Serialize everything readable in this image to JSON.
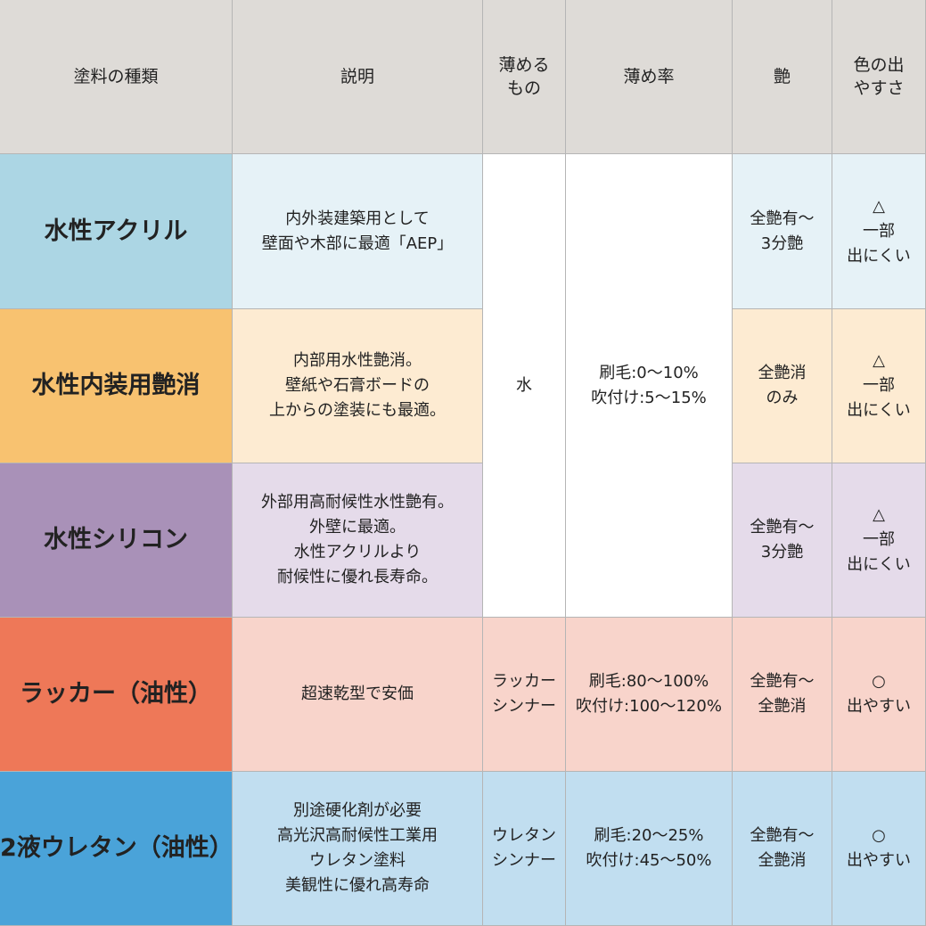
{
  "header": {
    "columns": [
      {
        "lines": [
          "塗料の種類"
        ]
      },
      {
        "lines": [
          "説明"
        ]
      },
      {
        "lines": [
          "薄める",
          "もの"
        ]
      },
      {
        "lines": [
          "薄め率"
        ]
      },
      {
        "lines": [
          "艶"
        ]
      },
      {
        "lines": [
          "色の出",
          "やすさ"
        ]
      }
    ]
  },
  "shared_water": {
    "thinner": [
      "水"
    ],
    "rate": [
      "刷毛:0〜10%",
      "吹付け:5〜15%"
    ]
  },
  "rows": [
    {
      "name": "水性アクリル",
      "description": [
        "内外装建築用として",
        "壁面や木部に最適「AEP」"
      ],
      "gloss": [
        "全艶有〜",
        "3分艶"
      ],
      "color": [
        "△",
        "一部",
        "出にくい"
      ]
    },
    {
      "name": "水性内装用艶消",
      "description": [
        "内部用水性艶消。",
        "壁紙や石膏ボードの",
        "上からの塗装にも最適。"
      ],
      "gloss": [
        "全艶消",
        "のみ"
      ],
      "color": [
        "△",
        "一部",
        "出にくい"
      ]
    },
    {
      "name": "水性シリコン",
      "description": [
        "外部用高耐候性水性艶有。",
        "外壁に最適。",
        "水性アクリルより",
        "耐候性に優れ長寿命。"
      ],
      "gloss": [
        "全艶有〜",
        "3分艶"
      ],
      "color": [
        "△",
        "一部",
        "出にくい"
      ]
    },
    {
      "name": "ラッカー（油性）",
      "description": [
        "超速乾型で安価"
      ],
      "thinner": [
        "ラッカー",
        "シンナー"
      ],
      "rate": [
        "刷毛:80〜100%",
        "吹付け:100〜120%"
      ],
      "gloss": [
        "全艶有〜",
        "全艶消"
      ],
      "color": [
        "○",
        "出やすい"
      ]
    },
    {
      "name": "2液ウレタン（油性）",
      "description": [
        "別途硬化剤が必要",
        "高光沢高耐候性工業用",
        "ウレタン塗料",
        "美観性に優れ高寿命"
      ],
      "thinner": [
        "ウレタン",
        "シンナー"
      ],
      "rate": [
        "刷毛:20〜25%",
        "吹付け:45〜50%"
      ],
      "gloss": [
        "全艶有〜",
        "全艶消"
      ],
      "color": [
        "○",
        "出やすい"
      ]
    }
  ]
}
